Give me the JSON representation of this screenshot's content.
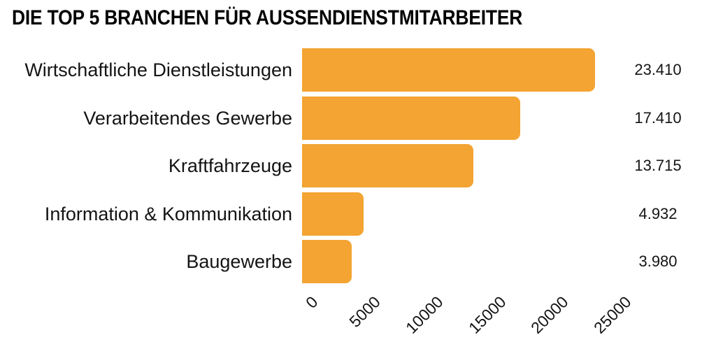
{
  "page": {
    "background_color": "#ffffff",
    "text_color": "#141414"
  },
  "chart_data": {
    "type": "bar",
    "orientation": "horizontal",
    "title": "DIE TOP 5 BRANCHEN FÜR AUSSENDIENSTMITARBEITER",
    "categories": [
      "Wirtschaftliche Dienstleistungen",
      "Verarbeitendes Gewerbe",
      "Kraftfahrzeuge",
      "Information & Kommunikation",
      "Baugewerbe"
    ],
    "values": [
      23410,
      17410,
      13715,
      4932,
      3980
    ],
    "value_labels": [
      "23.410",
      "17.410",
      "13.715",
      "4.932",
      "3.980"
    ],
    "x_tick_values": [
      0,
      5000,
      10000,
      15000,
      20000,
      25000
    ],
    "x_tick_labels": [
      "0",
      "5000",
      "10000",
      "15000",
      "20000",
      "25000"
    ],
    "xlim": [
      0,
      25000
    ],
    "bar_color": "#F3A432",
    "grid": false,
    "legend": false
  }
}
